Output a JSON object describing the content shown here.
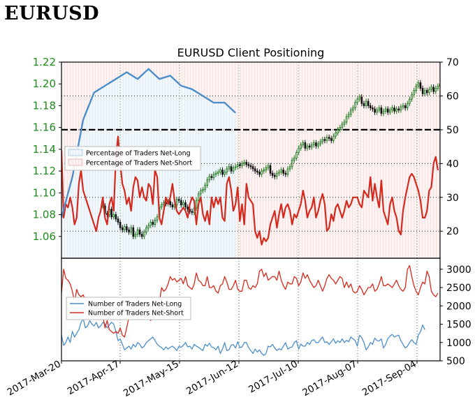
{
  "page": {
    "heading": "EURUSD"
  },
  "chart_data": [
    {
      "type": "line",
      "title": "EURUSD Client Positioning",
      "x_tick_labels": [
        "2017-Mar-20",
        "2017-Apr-17",
        "2017-May-15",
        "2017-Jun-12",
        "2017-Jul-10",
        "2017-Aug-07",
        "2017-Sep-04"
      ],
      "left_axis": {
        "ylim": [
          1.04,
          1.22
        ],
        "ticks": [
          "1.06",
          "1.08",
          "1.10",
          "1.12",
          "1.14",
          "1.16",
          "1.18",
          "1.20",
          "1.22"
        ],
        "color": "#1e8a1e"
      },
      "right_axis": {
        "ylim": [
          12,
          70
        ],
        "ticks": [
          "20",
          "30",
          "40",
          "50",
          "60",
          "70"
        ]
      },
      "reference_line": {
        "value": 50,
        "style": "dashed",
        "color": "#000000"
      },
      "legend": {
        "placement": "center-left",
        "entries": [
          "Percentage of Traders Net-Long",
          "Percentage of Traders Net-Short"
        ]
      },
      "series": [
        {
          "name": "Percentage of Traders Net-Long",
          "color": "#4e8ec8",
          "points": [
            [
              0,
              24
            ],
            [
              0.5,
              36
            ],
            [
              1,
              53
            ],
            [
              1.5,
              61
            ],
            [
              2,
              63
            ],
            [
              2.5,
              65
            ],
            [
              3,
              67
            ],
            [
              3.5,
              65
            ],
            [
              4,
              68
            ],
            [
              4.5,
              65
            ],
            [
              5,
              66
            ],
            [
              5.5,
              63
            ],
            [
              6,
              62
            ],
            [
              7,
              58
            ],
            [
              7.5,
              58
            ],
            [
              8,
              55
            ]
          ]
        },
        {
          "name": "Percentage of Traders Net-Short",
          "color": "#d42a1e",
          "values": [
            44,
            24,
            28,
            27,
            30,
            27,
            22,
            24,
            34,
            38,
            32,
            30,
            28,
            26,
            24,
            22,
            20,
            24,
            26,
            30,
            24,
            22,
            28,
            30,
            26,
            42,
            48,
            40,
            34,
            32,
            28,
            30,
            26,
            33,
            36,
            35,
            30,
            33,
            30,
            29,
            34,
            33,
            28,
            38,
            36,
            24,
            22,
            26,
            30,
            28,
            30,
            34,
            29,
            26,
            25,
            26,
            27,
            26,
            24,
            28,
            30,
            29,
            22,
            28,
            30,
            25,
            23,
            26,
            22,
            30,
            27,
            30,
            28,
            30,
            24,
            23,
            34,
            36,
            32,
            26,
            28,
            33,
            23,
            28,
            22,
            34,
            30,
            29,
            28,
            20,
            18,
            20,
            16,
            18,
            17,
            18,
            22,
            24,
            26,
            21,
            25,
            28,
            24,
            27,
            28,
            26,
            22,
            25,
            24,
            26,
            28,
            32,
            29,
            24,
            26,
            27,
            30,
            24,
            26,
            29,
            31,
            28,
            20,
            21,
            25,
            23,
            27,
            28,
            26,
            24,
            26,
            29,
            27,
            28,
            30,
            30,
            30,
            28,
            27,
            32,
            31,
            30,
            36,
            29,
            34,
            30,
            27,
            35,
            26,
            24,
            22,
            28,
            30,
            26,
            24,
            20,
            19,
            26,
            30,
            33,
            36,
            37,
            36,
            34,
            32,
            29,
            24,
            24,
            26,
            32,
            33,
            40,
            42,
            38
          ]
        }
      ],
      "price_candles": [
        1.088,
        1.081,
        1.08,
        1.085,
        1.078,
        1.08,
        1.076,
        1.073,
        1.068,
        1.066,
        1.069,
        1.066,
        1.064,
        1.068,
        1.06,
        1.062,
        1.066,
        1.062,
        1.06,
        1.064,
        1.068,
        1.07,
        1.073,
        1.071,
        1.075,
        1.078,
        1.087,
        1.089,
        1.091,
        1.09,
        1.092,
        1.089,
        1.087,
        1.089,
        1.094,
        1.093,
        1.089,
        1.091,
        1.087,
        1.085,
        1.083,
        1.082,
        1.086,
        1.093,
        1.099,
        1.102,
        1.103,
        1.107,
        1.112,
        1.115,
        1.114,
        1.117,
        1.118,
        1.119,
        1.121,
        1.117,
        1.119,
        1.122,
        1.124,
        1.12,
        1.123,
        1.124,
        1.126,
        1.125,
        1.127,
        1.128,
        1.126,
        1.125,
        1.124,
        1.122,
        1.12,
        1.119,
        1.117,
        1.12,
        1.121,
        1.123,
        1.125,
        1.118,
        1.116,
        1.115,
        1.118,
        1.119,
        1.121,
        1.118,
        1.117,
        1.122,
        1.124,
        1.13,
        1.132,
        1.137,
        1.141,
        1.144,
        1.146,
        1.141,
        1.143,
        1.142,
        1.144,
        1.146,
        1.143,
        1.145,
        1.147,
        1.149,
        1.148,
        1.151,
        1.15,
        1.148,
        1.152,
        1.155,
        1.158,
        1.16,
        1.163,
        1.165,
        1.17,
        1.172,
        1.176,
        1.178,
        1.183,
        1.186,
        1.188,
        1.182,
        1.18,
        1.184,
        1.18,
        1.178,
        1.177,
        1.174,
        1.176,
        1.178,
        1.173,
        1.175,
        1.177,
        1.174,
        1.176,
        1.178,
        1.175,
        1.177,
        1.176,
        1.179,
        1.18,
        1.178,
        1.182,
        1.186,
        1.19,
        1.194,
        1.198,
        1.201,
        1.196,
        1.191,
        1.194,
        1.192,
        1.195,
        1.197,
        1.193,
        1.196,
        1.198,
        1.2,
        1.205,
        1.203,
        1.198,
        1.201,
        1.196,
        1.192
      ]
    },
    {
      "type": "line",
      "x_tick_labels": [
        "2017-Mar-20",
        "2017-Apr-17",
        "2017-May-15",
        "2017-Jun-12",
        "2017-Jul-10",
        "2017-Aug-07",
        "2017-Sep-04"
      ],
      "right_axis": {
        "ylim": [
          500,
          3300
        ],
        "ticks": [
          "500",
          "1000",
          "1500",
          "2000",
          "2500",
          "3000"
        ]
      },
      "legend": {
        "placement": "left",
        "entries": [
          "Number of Traders Net-Long",
          "Number of Traders Net-Short"
        ]
      },
      "series": [
        {
          "name": "Number of Traders Net-Long",
          "color": "#4e8ec8",
          "values": [
            1200,
            920,
            1000,
            1150,
            1000,
            1300,
            1150,
            1250,
            1350,
            1550,
            1650,
            1400,
            1450,
            1600,
            1500,
            1450,
            1550,
            1400,
            1450,
            1550,
            1500,
            1400,
            1480,
            1550,
            1500,
            1300,
            1050,
            1100,
            950,
            800,
            850,
            900,
            820,
            950,
            880,
            1000,
            950,
            850,
            900,
            1000,
            1050,
            1100,
            1150,
            1050,
            950,
            900,
            860,
            800,
            880,
            820,
            870,
            900,
            850,
            780,
            900,
            870,
            920,
            1000,
            880,
            900,
            820,
            950,
            900,
            870,
            820,
            780,
            950,
            900,
            980,
            880,
            860,
            800,
            900,
            700,
            820,
            1000,
            780,
            800,
            930,
            940,
            850,
            1020,
            860,
            880,
            1000,
            1000,
            860,
            780,
            700,
            820,
            740,
            800,
            700,
            650,
            700,
            900,
            880,
            950,
            850,
            780,
            830,
            800,
            900,
            1000,
            820,
            860,
            880,
            1000,
            1050,
            820,
            960,
            900,
            900,
            1000,
            950,
            1050,
            1080,
            1000,
            1000,
            1080,
            1150,
            1000,
            1020,
            950,
            1020,
            1100,
            980,
            1050,
            1000,
            1100,
            1000,
            1060,
            1020,
            1150,
            1100,
            1050,
            900,
            1200,
            1130,
            1000,
            800,
            880,
            1000,
            950,
            1120,
            1050,
            1040,
            1100,
            850,
            950,
            1100,
            1180,
            1220,
            1150,
            1180,
            1200,
            1050,
            950,
            850,
            900,
            1000,
            1080,
            1000,
            950,
            1200,
            1300,
            1480,
            1350
          ]
        },
        {
          "name": "Number of Traders Net-Short",
          "color": "#d42a1e",
          "values": [
            2350,
            3000,
            2750,
            2700,
            2600,
            2400,
            2100,
            2450,
            2300,
            2250,
            2300,
            2150,
            2050,
            1800,
            1750,
            1700,
            1650,
            1900,
            1750,
            1750,
            1400,
            1600,
            1350,
            1300,
            1250,
            1300,
            1250,
            1400,
            1200,
            1150,
            1400,
            1700,
            2000,
            2000,
            1800,
            1700,
            1850,
            1900,
            1750,
            1850,
            1700,
            1600,
            1850,
            1900,
            2000,
            2100,
            2500,
            2400,
            2450,
            2600,
            2800,
            2700,
            2750,
            2650,
            2700,
            2750,
            2600,
            2800,
            2550,
            2500,
            2450,
            2600,
            2900,
            2700,
            2650,
            2550,
            2550,
            2800,
            2500,
            2500,
            2550,
            2400,
            2350,
            2550,
            2600,
            2800,
            2650,
            2450,
            2450,
            2550,
            2700,
            2450,
            2400,
            2400,
            2700,
            2700,
            2500,
            2450,
            2550,
            2500,
            2600,
            2950,
            3000,
            2800,
            2900,
            2700,
            2750,
            2800,
            2800,
            2700,
            2950,
            2700,
            2550,
            2450,
            2650,
            2600,
            2600,
            2800,
            2750,
            2550,
            2650,
            2900,
            2750,
            2850,
            2700,
            2600,
            2500,
            2550,
            2700,
            2550,
            2400,
            2550,
            2750,
            2850,
            2750,
            2700,
            2600,
            2700,
            2800,
            2750,
            2500,
            2650,
            2500,
            2600,
            2400,
            2350,
            2400,
            2550,
            2450,
            2300,
            2400,
            2500,
            2500,
            2600,
            2400,
            2450,
            2600,
            2800,
            2550,
            2550,
            2600,
            2550,
            2500,
            2600,
            2700,
            2550,
            2450,
            2400,
            2500,
            3000,
            3100,
            2800,
            2550,
            2400,
            2300,
            2500,
            2650,
            2600,
            2950,
            2800,
            2400,
            2300,
            2250,
            2350
          ]
        }
      ]
    }
  ]
}
